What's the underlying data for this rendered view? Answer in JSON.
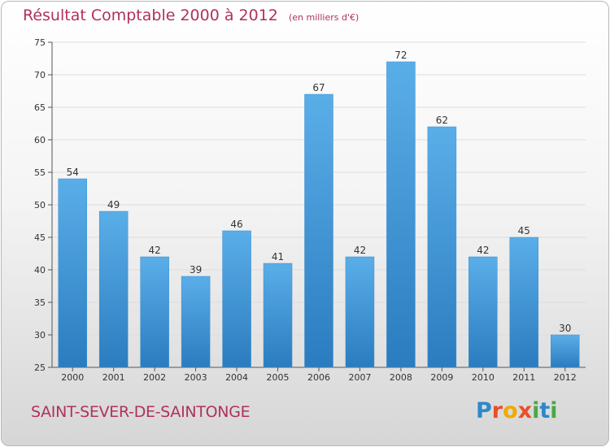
{
  "header": {
    "title": "Résultat Comptable 2000 à 2012",
    "unit": "(en milliers d'€)"
  },
  "footer": {
    "city": "SAINT-SEVER-DE-SAINTONGE",
    "brand": [
      "P",
      "r",
      "o",
      "x",
      "i",
      "t",
      "i"
    ]
  },
  "colors": {
    "title": "#b0325a",
    "bar_top": "#5aaee8",
    "bar_bottom": "#2b7cbf",
    "grid": "#dcdcdc"
  },
  "chart_data": {
    "type": "bar",
    "categories": [
      "2000",
      "2001",
      "2002",
      "2003",
      "2004",
      "2005",
      "2006",
      "2007",
      "2008",
      "2009",
      "2010",
      "2011",
      "2012"
    ],
    "values": [
      54,
      49,
      42,
      39,
      46,
      41,
      67,
      42,
      72,
      62,
      42,
      45,
      30
    ],
    "ylim": [
      25,
      75
    ],
    "yticks": [
      25,
      30,
      35,
      40,
      45,
      50,
      55,
      60,
      65,
      70,
      75
    ],
    "grid": true,
    "legend": "none"
  }
}
